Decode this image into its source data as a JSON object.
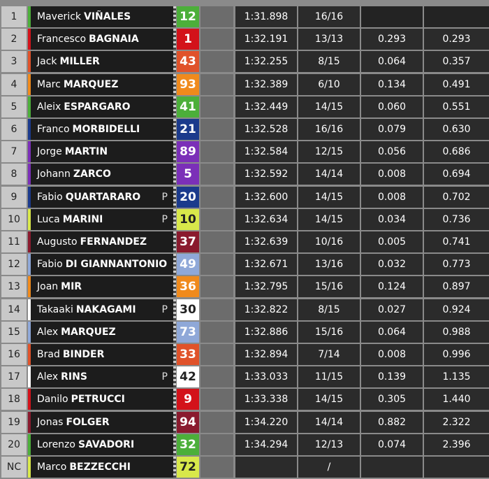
{
  "rows": [
    {
      "pos": "1",
      "first": "Maverick",
      "last": "VIÑALES",
      "number": "12",
      "color": "#4caf3a",
      "time": "1:31.898",
      "laps": "16/16"
    },
    {
      "pos": "2",
      "first": "Francesco",
      "last": "BAGNAIA",
      "number": "1",
      "color": "#d3121a",
      "time": "1:32.191",
      "laps": "13/13",
      "gap": "0.293",
      "gap_first": "0.293"
    },
    {
      "pos": "3",
      "first": "Jack",
      "last": "MILLER",
      "number": "43",
      "color": "#e0522a",
      "time": "1:32.255",
      "laps": "8/15",
      "gap": "0.064",
      "gap_first": "0.357"
    },
    {
      "pos": "4",
      "first": "Marc",
      "last": "MARQUEZ",
      "number": "93",
      "color": "#f08a1c",
      "time": "1:32.389",
      "laps": "6/10",
      "gap": "0.134",
      "gap_first": "0.491"
    },
    {
      "pos": "5",
      "first": "Aleix",
      "last": "ESPARGARO",
      "number": "41",
      "color": "#4caf3a",
      "time": "1:32.449",
      "laps": "14/15",
      "gap": "0.060",
      "gap_first": "0.551"
    },
    {
      "pos": "6",
      "first": "Franco",
      "last": "MORBIDELLI",
      "number": "21",
      "color": "#1b3a8c",
      "time": "1:32.528",
      "laps": "16/16",
      "gap": "0.079",
      "gap_first": "0.630"
    },
    {
      "pos": "7",
      "first": "Jorge",
      "last": "MARTIN",
      "number": "89",
      "color": "#7b2fb8",
      "time": "1:32.584",
      "laps": "12/15",
      "gap": "0.056",
      "gap_first": "0.686"
    },
    {
      "pos": "8",
      "first": "Johann",
      "last": "ZARCO",
      "number": "5",
      "color": "#7b2fb8",
      "time": "1:32.592",
      "laps": "14/14",
      "gap": "0.008",
      "gap_first": "0.694"
    },
    {
      "pos": "9",
      "first": "Fabio",
      "last": "QUARTARARO",
      "pit": "P",
      "number": "20",
      "color": "#1b3a8c",
      "time": "1:32.600",
      "laps": "14/15",
      "gap": "0.008",
      "gap_first": "0.702"
    },
    {
      "pos": "10",
      "first": "Luca",
      "last": "MARINI",
      "pit": "P",
      "number": "10",
      "color": "#d8e84a",
      "time": "1:32.634",
      "laps": "14/15",
      "gap": "0.034",
      "gap_first": "0.736"
    },
    {
      "pos": "11",
      "first": "Augusto",
      "last": "FERNANDEZ",
      "number": "37",
      "color": "#8a1a2e",
      "time": "1:32.639",
      "laps": "10/16",
      "gap": "0.005",
      "gap_first": "0.741"
    },
    {
      "pos": "12",
      "first": "Fabio",
      "last": "DI GIANNANTONIO",
      "number": "49",
      "color": "#8fa8d8",
      "time": "1:32.671",
      "laps": "13/16",
      "gap": "0.032",
      "gap_first": "0.773"
    },
    {
      "pos": "13",
      "first": "Joan",
      "last": "MIR",
      "number": "36",
      "color": "#f08a1c",
      "time": "1:32.795",
      "laps": "15/16",
      "gap": "0.124",
      "gap_first": "0.897"
    },
    {
      "pos": "14",
      "first": "Takaaki",
      "last": "NAKAGAMI",
      "pit": "P",
      "number": "30",
      "color": "#ffffff",
      "time": "1:32.822",
      "laps": "8/15",
      "gap": "0.027",
      "gap_first": "0.924"
    },
    {
      "pos": "15",
      "first": "Alex",
      "last": "MARQUEZ",
      "number": "73",
      "color": "#8fa8d8",
      "time": "1:32.886",
      "laps": "15/16",
      "gap": "0.064",
      "gap_first": "0.988"
    },
    {
      "pos": "16",
      "first": "Brad",
      "last": "BINDER",
      "number": "33",
      "color": "#e0522a",
      "time": "1:32.894",
      "laps": "7/14",
      "gap": "0.008",
      "gap_first": "0.996"
    },
    {
      "pos": "17",
      "first": "Alex",
      "last": "RINS",
      "pit": "P",
      "number": "42",
      "color": "#ffffff",
      "time": "1:33.033",
      "laps": "11/15",
      "gap": "0.139",
      "gap_first": "1.135"
    },
    {
      "pos": "18",
      "first": "Danilo",
      "last": "PETRUCCI",
      "number": "9",
      "color": "#d3121a",
      "time": "1:33.338",
      "laps": "14/15",
      "gap": "0.305",
      "gap_first": "1.440"
    },
    {
      "pos": "19",
      "first": "Jonas",
      "last": "FOLGER",
      "number": "94",
      "color": "#8a1a2e",
      "time": "1:34.220",
      "laps": "14/14",
      "gap": "0.882",
      "gap_first": "2.322"
    },
    {
      "pos": "20",
      "first": "Lorenzo",
      "last": "SAVADORI",
      "number": "32",
      "color": "#4caf3a",
      "time": "1:34.294",
      "laps": "12/13",
      "gap": "0.074",
      "gap_first": "2.396"
    },
    {
      "pos": "NC",
      "first": "Marco",
      "last": "BEZZECCHI",
      "number": "72",
      "color": "#d8e84a",
      "laps": "/"
    }
  ]
}
